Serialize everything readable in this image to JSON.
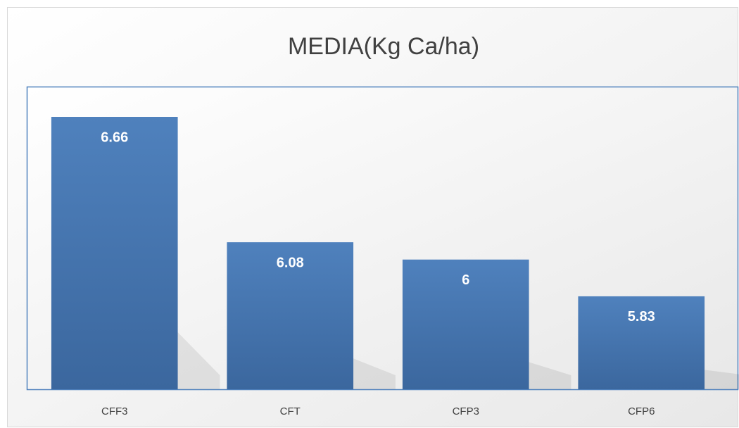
{
  "chart_data": {
    "type": "bar",
    "title": "MEDIA(Kg Ca/ha)",
    "categories": [
      "CFF3",
      "CFT",
      "CFP3",
      "CFP6"
    ],
    "values": [
      6.66,
      6.08,
      6,
      5.83
    ],
    "color": "#4a7ebb",
    "ylim": [
      5.4,
      6.8
    ]
  }
}
